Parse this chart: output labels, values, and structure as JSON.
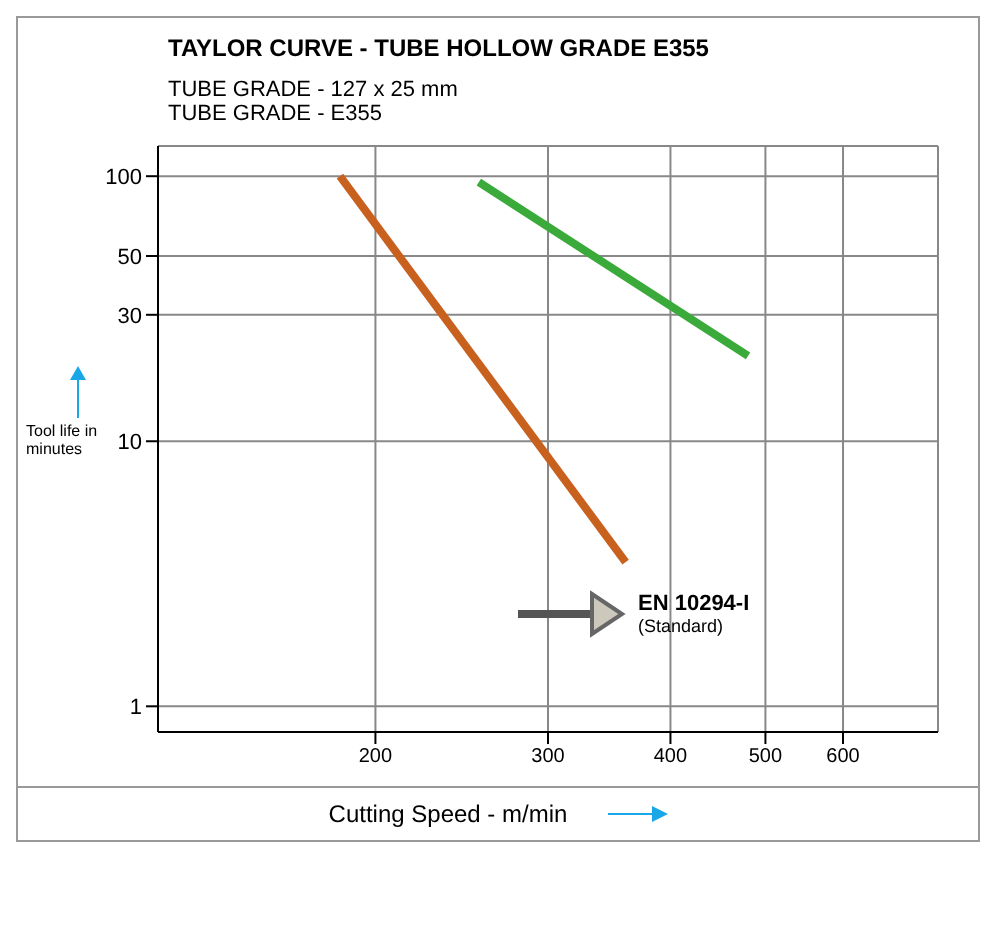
{
  "chart_data": {
    "type": "line",
    "title": "TAYLOR CURVE - TUBE HOLLOW GRADE E355",
    "subtitle": "TUBE GRADE - 127 x 25 mm",
    "annotations": [
      "TUBE GRADE - E355",
      "EN 10294-I",
      "(Standard)"
    ],
    "xlabel": "Cutting Speed - m/min",
    "ylabel": "Tool life in minutes",
    "series": [
      {
        "color": "#c8601e",
        "x": [
          184,
          360
        ],
        "values": [
          100,
          3.5
        ]
      },
      {
        "color": "#3aaa3a",
        "x": [
          255,
          480
        ],
        "values": [
          95,
          21
        ]
      }
    ],
    "log": "xy",
    "xlim": [
      120,
      750
    ],
    "xticks": [
      200,
      300,
      400,
      500,
      600
    ],
    "ylim": [
      0.8,
      130
    ],
    "yticks": [
      1,
      10,
      30,
      50,
      100
    ],
    "grid": true,
    "marker": "none",
    "line_style": "solid"
  }
}
